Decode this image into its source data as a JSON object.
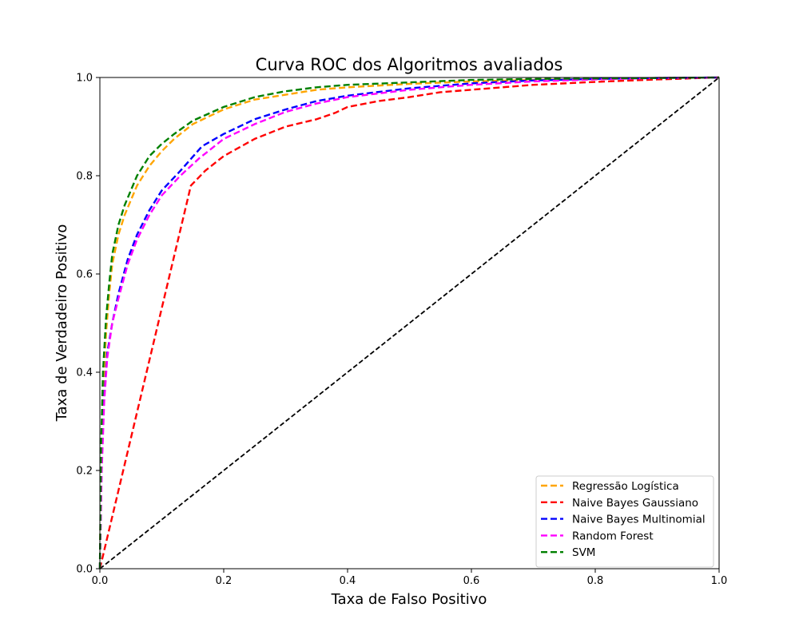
{
  "chart_data": {
    "type": "line",
    "title": "Curva ROC dos Algoritmos avaliados",
    "xlabel": "Taxa de Falso Positivo",
    "ylabel": "Taxa de Verdadeiro Positivo",
    "xlim": [
      0.0,
      1.0
    ],
    "ylim": [
      0.0,
      1.0
    ],
    "xticks": [
      "0.0",
      "0.2",
      "0.4",
      "0.6",
      "0.8",
      "1.0"
    ],
    "yticks": [
      "0.0",
      "0.2",
      "0.4",
      "0.6",
      "0.8",
      "1.0"
    ],
    "grid": false,
    "legend_position": "lower-right",
    "series": [
      {
        "name": "Regressão Logística",
        "color": "#ffa500",
        "style": "dashed",
        "x": [
          0.0,
          0.002,
          0.005,
          0.01,
          0.015,
          0.02,
          0.03,
          0.04,
          0.05,
          0.06,
          0.08,
          0.1,
          0.12,
          0.15,
          0.2,
          0.25,
          0.3,
          0.35,
          0.4,
          0.5,
          0.6,
          0.7,
          0.8,
          0.9,
          1.0
        ],
        "y": [
          0.0,
          0.2,
          0.35,
          0.48,
          0.56,
          0.62,
          0.68,
          0.72,
          0.75,
          0.78,
          0.82,
          0.85,
          0.875,
          0.905,
          0.935,
          0.955,
          0.965,
          0.975,
          0.98,
          0.987,
          0.992,
          0.995,
          0.997,
          0.999,
          1.0
        ]
      },
      {
        "name": "Naive Bayes Gaussiano",
        "color": "#ff0000",
        "style": "dashed",
        "x": [
          0.0,
          0.147,
          0.17,
          0.2,
          0.25,
          0.3,
          0.35,
          0.38,
          0.4,
          0.45,
          0.5,
          0.55,
          0.6,
          0.7,
          0.8,
          0.9,
          1.0
        ],
        "y": [
          0.0,
          0.78,
          0.81,
          0.84,
          0.875,
          0.9,
          0.915,
          0.928,
          0.94,
          0.952,
          0.96,
          0.97,
          0.975,
          0.985,
          0.991,
          0.996,
          1.0
        ]
      },
      {
        "name": "Naive Bayes Multinomial",
        "color": "#0000ff",
        "style": "dashed",
        "x": [
          0.0,
          0.003,
          0.007,
          0.012,
          0.02,
          0.03,
          0.045,
          0.06,
          0.08,
          0.1,
          0.13,
          0.165,
          0.2,
          0.25,
          0.3,
          0.35,
          0.4,
          0.5,
          0.6,
          0.7,
          0.8,
          0.9,
          1.0
        ],
        "y": [
          0.0,
          0.22,
          0.35,
          0.44,
          0.5,
          0.56,
          0.63,
          0.68,
          0.73,
          0.77,
          0.81,
          0.86,
          0.885,
          0.915,
          0.935,
          0.952,
          0.963,
          0.978,
          0.988,
          0.994,
          0.997,
          0.999,
          1.0
        ]
      },
      {
        "name": "Random Forest",
        "color": "#ff00ff",
        "style": "dashed",
        "x": [
          0.0,
          0.003,
          0.007,
          0.012,
          0.02,
          0.03,
          0.045,
          0.06,
          0.08,
          0.1,
          0.13,
          0.16,
          0.2,
          0.25,
          0.3,
          0.35,
          0.4,
          0.5,
          0.6,
          0.7,
          0.8,
          0.9,
          1.0
        ],
        "y": [
          0.0,
          0.2,
          0.34,
          0.43,
          0.5,
          0.55,
          0.62,
          0.67,
          0.72,
          0.76,
          0.8,
          0.835,
          0.875,
          0.905,
          0.93,
          0.947,
          0.96,
          0.975,
          0.985,
          0.992,
          0.996,
          0.999,
          1.0
        ]
      },
      {
        "name": "SVM",
        "color": "#008000",
        "style": "dashed",
        "x": [
          0.0,
          0.002,
          0.005,
          0.01,
          0.015,
          0.02,
          0.03,
          0.04,
          0.05,
          0.06,
          0.08,
          0.1,
          0.12,
          0.15,
          0.2,
          0.25,
          0.3,
          0.35,
          0.4,
          0.5,
          0.6,
          0.7,
          0.8,
          0.9,
          1.0
        ],
        "y": [
          0.0,
          0.25,
          0.4,
          0.51,
          0.58,
          0.64,
          0.7,
          0.74,
          0.77,
          0.8,
          0.84,
          0.865,
          0.885,
          0.912,
          0.94,
          0.96,
          0.972,
          0.98,
          0.985,
          0.99,
          0.995,
          0.997,
          0.998,
          0.999,
          1.0
        ]
      }
    ],
    "reference_line": {
      "color": "#000000",
      "style": "dashed",
      "x": [
        0.0,
        1.0
      ],
      "y": [
        0.0,
        1.0
      ]
    }
  }
}
